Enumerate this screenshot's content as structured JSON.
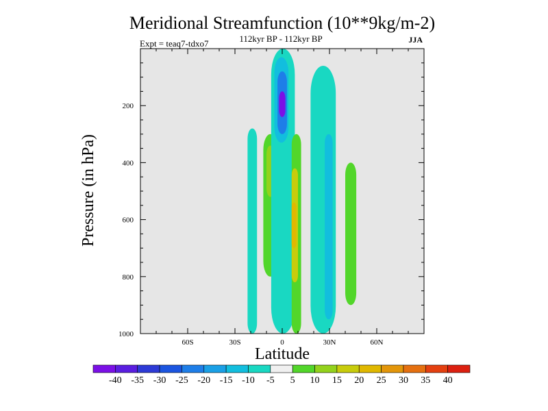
{
  "chart_data": {
    "type": "contour",
    "title": "Meridional Streamfunction (10**9kg/m-2)",
    "subtitle": "112kyr BP - 112kyr BP",
    "left_note": "Expt = teaq7-tdxo7",
    "right_note": "JJA",
    "xlabel": "Latitude",
    "ylabel": "Pressure (in hPa)",
    "xlim": [
      -90,
      90
    ],
    "ylim": [
      1000,
      0
    ],
    "xticks": [
      {
        "value": -60,
        "label": "60S"
      },
      {
        "value": -30,
        "label": "30S"
      },
      {
        "value": 0,
        "label": "0"
      },
      {
        "value": 30,
        "label": "30N"
      },
      {
        "value": 60,
        "label": "60N"
      }
    ],
    "yticks": [
      {
        "value": 200,
        "label": "200"
      },
      {
        "value": 400,
        "label": "400"
      },
      {
        "value": 600,
        "label": "600"
      },
      {
        "value": 800,
        "label": "800"
      },
      {
        "value": 1000,
        "label": "1000"
      }
    ],
    "colorbar": {
      "labels": [
        "-40",
        "-35",
        "-30",
        "-25",
        "-20",
        "-15",
        "-10",
        "-5",
        "5",
        "10",
        "15",
        "20",
        "25",
        "30",
        "35",
        "40"
      ],
      "colors": [
        "#7b10e6",
        "#5a1ee0",
        "#2d3ad6",
        "#1b55e0",
        "#1e7ee8",
        "#1aa0e6",
        "#12bede",
        "#19d8c2",
        "#f0f0f0",
        "#52d62a",
        "#93d21c",
        "#c8cc0c",
        "#e0b800",
        "#e3960a",
        "#e57010",
        "#e44010",
        "#dc2010"
      ]
    },
    "background": "#e6e6e6",
    "regions": [
      {
        "level": -5,
        "lat": [
          -22,
          -16
        ],
        "p": [
          280,
          1000
        ],
        "color": "#19d8c2"
      },
      {
        "level": 10,
        "lat": [
          -12,
          -3
        ],
        "p": [
          300,
          800
        ],
        "color": "#52d62a"
      },
      {
        "level": 15,
        "lat": [
          -10,
          -5
        ],
        "p": [
          340,
          520
        ],
        "color": "#93d21c"
      },
      {
        "level": -5,
        "lat": [
          -7,
          8
        ],
        "p": [
          0,
          1000
        ],
        "color": "#19d8c2"
      },
      {
        "level": -10,
        "lat": [
          -5,
          4
        ],
        "p": [
          30,
          330
        ],
        "color": "#12bede"
      },
      {
        "level": -20,
        "lat": [
          -3,
          3
        ],
        "p": [
          80,
          300
        ],
        "color": "#1e7ee8"
      },
      {
        "level": -40,
        "lat": [
          -2,
          2
        ],
        "p": [
          150,
          240
        ],
        "color": "#7b10e6"
      },
      {
        "level": 10,
        "lat": [
          6,
          12
        ],
        "p": [
          300,
          1000
        ],
        "color": "#52d62a"
      },
      {
        "level": 20,
        "lat": [
          6,
          10
        ],
        "p": [
          420,
          820
        ],
        "color": "#c8cc0c"
      },
      {
        "level": 25,
        "lat": [
          6,
          9
        ],
        "p": [
          540,
          700
        ],
        "color": "#e0b800"
      },
      {
        "level": -5,
        "lat": [
          18,
          34
        ],
        "p": [
          60,
          1000
        ],
        "color": "#19d8c2"
      },
      {
        "level": -10,
        "lat": [
          27,
          32
        ],
        "p": [
          300,
          950
        ],
        "color": "#12bede"
      },
      {
        "level": 10,
        "lat": [
          40,
          47
        ],
        "p": [
          400,
          900
        ],
        "color": "#52d62a"
      }
    ]
  }
}
